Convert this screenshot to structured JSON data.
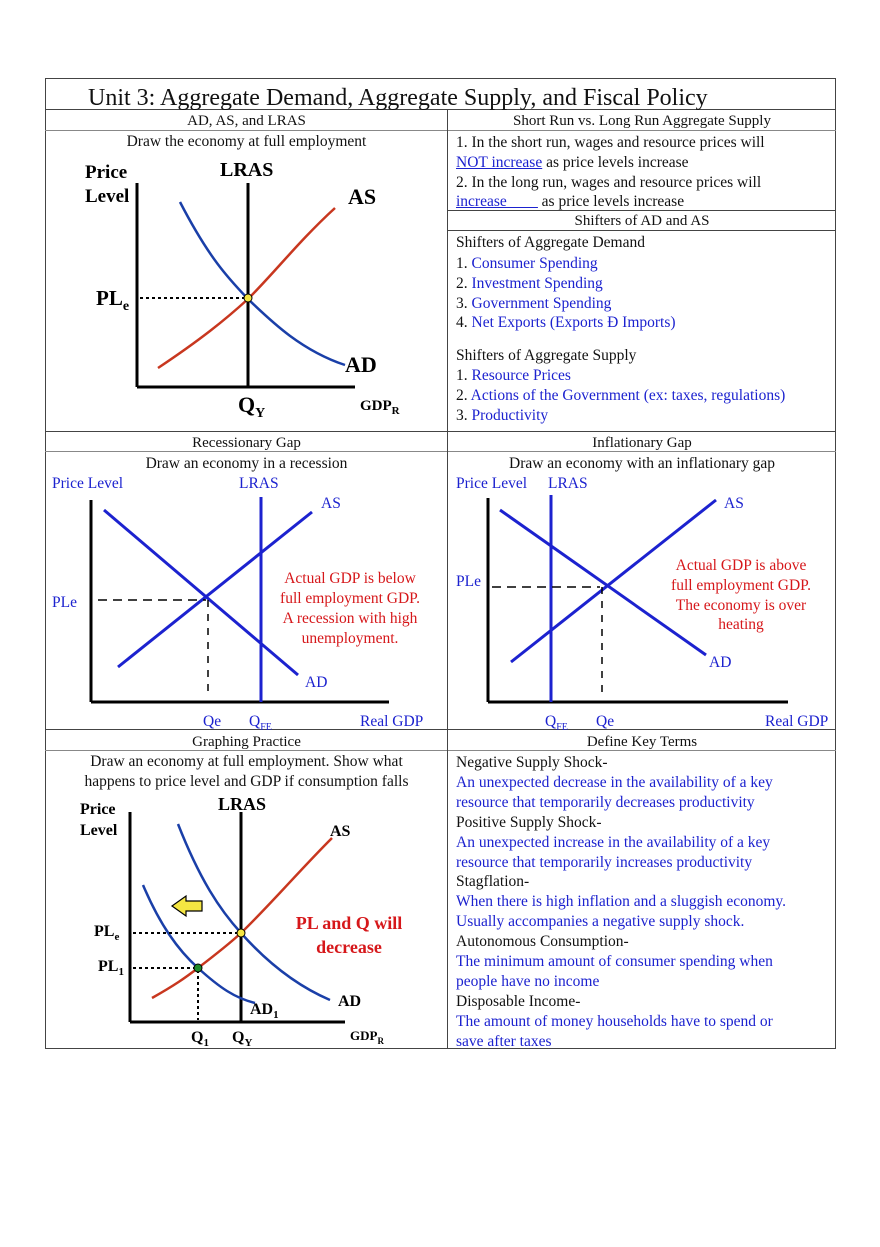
{
  "page_title": "Unit 3: Aggregate Demand, Aggregate Supply, and Fiscal Policy",
  "sec1": {
    "header": "AD, AS, and LRAS",
    "prompt": "Draw the economy at full employment",
    "graph": {
      "price_label_1": "Price",
      "price_label_2": "Level",
      "lras": "LRAS",
      "as": "AS",
      "ad": "AD",
      "ple": "PL",
      "ple_sub": "e",
      "qy": "Q",
      "qy_sub": "Y",
      "gdpr": "GDP",
      "gdpr_sub": "R"
    }
  },
  "sec2": {
    "header": "Short Run vs. Long Run Aggregate Supply",
    "line1": "1. In the short run, wages and resource prices will",
    "line2_answer": "NOT increase",
    "line2_rest": " as price levels increase",
    "line3": "2. In the long run, wages and resource prices will",
    "line4_answer": "increase____",
    "line4_rest": "  as price levels increase"
  },
  "sec3": {
    "header": "Shifters of AD and AS",
    "ad_title": "Shifters of Aggregate Demand",
    "ad_items": [
      {
        "num": "1. ",
        "text": "Consumer Spending"
      },
      {
        "num": "2. ",
        "text": "Investment Spending"
      },
      {
        "num": "3. ",
        "text": "Government Spending"
      },
      {
        "num": "4. ",
        "text": "Net Exports (Exports Ð Imports)"
      }
    ],
    "as_title": "Shifters of Aggregate Supply",
    "as_items": [
      {
        "num": "1. ",
        "text": "Resource Prices"
      },
      {
        "num": "2. ",
        "text": "Actions of the Government (ex: taxes, regulations)"
      },
      {
        "num": "3. ",
        "text": "Productivity"
      }
    ]
  },
  "sec4": {
    "header": "Recessionary Gap",
    "prompt": "Draw an economy in a recession",
    "graph": {
      "price_level": "Price Level",
      "lras": "LRAS",
      "as": "AS",
      "ad": "AD",
      "ple": "PLe",
      "qe": "Qe",
      "qfe": "Q",
      "qfe_sub": "FE",
      "real_gdp": "Real GDP",
      "note": [
        "Actual GDP is below",
        "full employment GDP.",
        "A recession with high",
        "unemployment."
      ]
    }
  },
  "sec5": {
    "header": "Inflationary Gap",
    "prompt": "Draw an economy with an inflationary gap",
    "graph": {
      "price_level": "Price Level",
      "lras": "LRAS",
      "as": "AS",
      "ad": "AD",
      "ple": "PLe",
      "qe": "Qe",
      "qfe": "Q",
      "qfe_sub": "FE",
      "real_gdp": "Real GDP",
      "note": [
        "Actual GDP is above",
        "full employment GDP.",
        "The economy is over",
        "heating"
      ]
    }
  },
  "sec6": {
    "header": "Graphing Practice",
    "prompt_1": "Draw an economy at full employment. Show what",
    "prompt_2": "happens to price level and GDP if consumption falls",
    "graph": {
      "price_label_1": "Price",
      "price_label_2": "Level",
      "lras": "LRAS",
      "as": "AS",
      "ad": "AD",
      "ad1": "AD",
      "ad1_sub": "1",
      "ple": "PL",
      "ple_sub": "e",
      "pl1": "PL",
      "pl1_sub": "1",
      "q1": "Q",
      "q1_sub": "1",
      "qy": "Q",
      "qy_sub": "Y",
      "gdpr": "GDP",
      "gdpr_sub": "R",
      "note": [
        "PL and Q will",
        "decrease"
      ]
    }
  },
  "sec7": {
    "header": "Define Key Terms",
    "terms": [
      {
        "term": "Negative Supply Shock-",
        "def": [
          "An unexpected decrease in the availability of a key",
          "resource that temporarily decreases productivity"
        ]
      },
      {
        "term": "Positive Supply Shock-",
        "def": [
          "An unexpected increase in the availability of a key",
          "resource that temporarily increases productivity"
        ]
      },
      {
        "term": "Stagflation-",
        "def": [
          "When there is high inflation and a sluggish economy.",
          "Usually accompanies a negative supply shock."
        ]
      },
      {
        "term": "Autonomous Consumption-",
        "def": [
          "The minimum amount of consumer spending when",
          "people have no income"
        ]
      },
      {
        "term": "Disposable Income-",
        "def": [
          "The amount of money households have to spend or",
          "save after taxes"
        ]
      }
    ]
  },
  "colors": {
    "blue_text": "#1c22cf",
    "red_text": "#d6171a",
    "curve_blue": "#1a3fa8",
    "curve_red": "#c8371f",
    "intersection": "#f5e642"
  }
}
